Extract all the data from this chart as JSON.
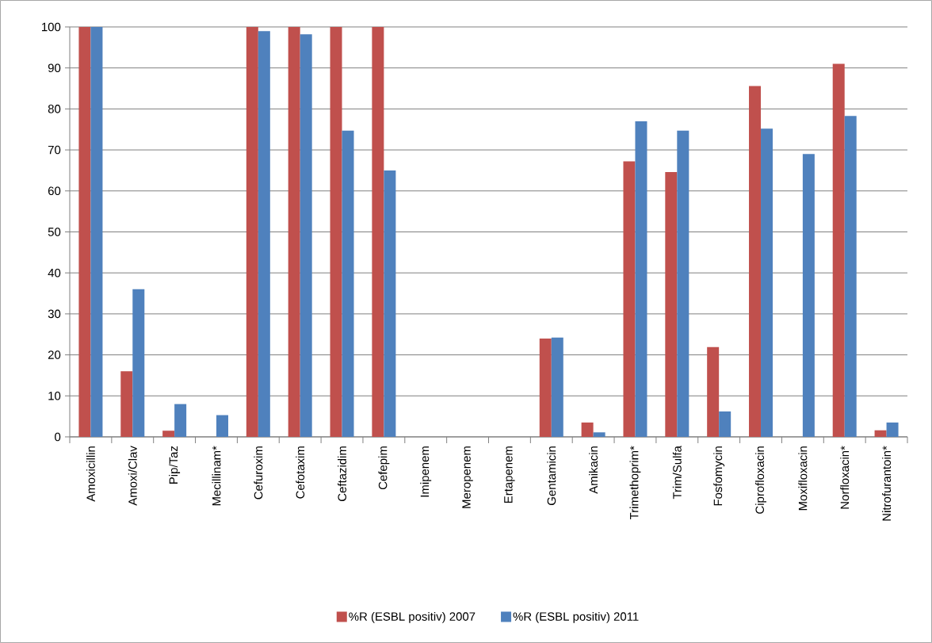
{
  "chart_data": {
    "type": "bar",
    "categories": [
      "Amoxicillin",
      "Amoxi/Clav",
      "Pip/Taz",
      "Mecillinam*",
      "Cefuroxim",
      "Cefotaxim",
      "Ceftazidim",
      "Cefepim",
      "Imipenem",
      "Meropenem",
      "Ertapenem",
      "Gentamicin",
      "Amikacin",
      "Trimethoprim*",
      "Trim/Sulfa",
      "Fosfomycin",
      "Ciprofloxacin",
      "Moxifloxacin",
      "Norfloxacin*",
      "Nitrofurantoin*"
    ],
    "series": [
      {
        "name": "%R (ESBL positiv) 2007",
        "color": "#c0504d",
        "values": [
          100,
          16,
          1.5,
          null,
          100,
          100,
          100,
          100,
          null,
          null,
          null,
          24,
          3.5,
          67.2,
          64.6,
          21.9,
          85.6,
          null,
          91,
          1.6
        ]
      },
      {
        "name": "%R (ESBL positiv) 2011",
        "color": "#4f81bd",
        "values": [
          100,
          36,
          8,
          5.3,
          99,
          98.2,
          74.7,
          65,
          null,
          null,
          null,
          24.2,
          1.1,
          77,
          74.7,
          6.2,
          75.2,
          69,
          78.3,
          3.5
        ]
      }
    ],
    "ylim": [
      0,
      100
    ],
    "yticks": [
      0,
      10,
      20,
      30,
      40,
      50,
      60,
      70,
      80,
      90,
      100
    ],
    "grid": "y",
    "legend": "bottom"
  }
}
